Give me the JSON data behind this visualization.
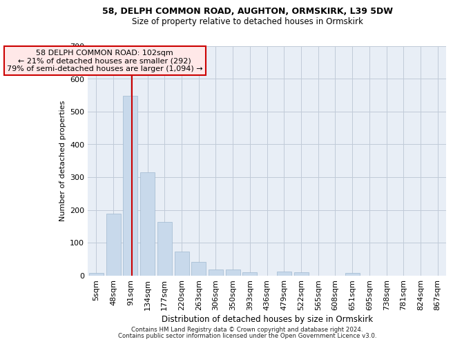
{
  "title1": "58, DELPH COMMON ROAD, AUGHTON, ORMSKIRK, L39 5DW",
  "title2": "Size of property relative to detached houses in Ormskirk",
  "xlabel": "Distribution of detached houses by size in Ormskirk",
  "ylabel": "Number of detached properties",
  "categories": [
    "5sqm",
    "48sqm",
    "91sqm",
    "134sqm",
    "177sqm",
    "220sqm",
    "263sqm",
    "306sqm",
    "350sqm",
    "393sqm",
    "436sqm",
    "479sqm",
    "522sqm",
    "565sqm",
    "608sqm",
    "651sqm",
    "695sqm",
    "738sqm",
    "781sqm",
    "824sqm",
    "867sqm"
  ],
  "values": [
    8,
    188,
    548,
    315,
    163,
    73,
    42,
    18,
    18,
    10,
    0,
    12,
    10,
    0,
    0,
    7,
    0,
    0,
    0,
    0,
    0
  ],
  "bar_color": "#c8d9eb",
  "bar_edge_color": "#a0b8d0",
  "grid_color": "#c0cad8",
  "background_color": "#e8eef6",
  "annotation_border_color": "#cc0000",
  "annotation_face_color": "#ffe8e8",
  "vline_color": "#cc0000",
  "vline_x": 2.1,
  "annotation_line1": "58 DELPH COMMON ROAD: 102sqm",
  "annotation_line2": "← 21% of detached houses are smaller (292)",
  "annotation_line3": "79% of semi-detached houses are larger (1,094) →",
  "footer1": "Contains HM Land Registry data © Crown copyright and database right 2024.",
  "footer2": "Contains public sector information licensed under the Open Government Licence v3.0.",
  "ylim_max": 700,
  "yticks": [
    0,
    100,
    200,
    300,
    400,
    500,
    600,
    700
  ]
}
